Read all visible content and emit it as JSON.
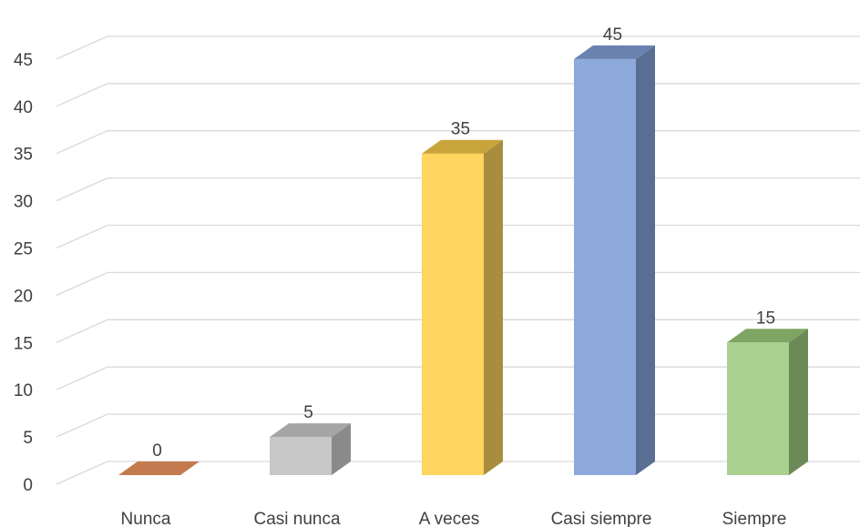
{
  "chart_data": {
    "type": "bar",
    "style": "3d-column",
    "categories": [
      "Nunca",
      "Casi nunca",
      "A veces",
      "Casi siempre",
      "Siempre"
    ],
    "values": [
      0,
      5,
      35,
      45,
      15
    ],
    "data_labels": [
      "0",
      "5",
      "35",
      "45",
      "15"
    ],
    "ylim": [
      0,
      45
    ],
    "yticks": [
      0,
      5,
      10,
      15,
      20,
      25,
      30,
      35,
      40,
      45
    ],
    "grid": true,
    "legend": "none",
    "colors": [
      {
        "front": "#c47a4f",
        "side": "#9a5a36",
        "top": "#c47a4f"
      },
      {
        "front": "#c8c8c8",
        "side": "#8a8a8a",
        "top": "#a5a5a5"
      },
      {
        "front": "#ffd45f",
        "side": "#a88d3e",
        "top": "#c9a43a"
      },
      {
        "front": "#8eaadb",
        "side": "#5a6d92",
        "top": "#6a82b0"
      },
      {
        "front": "#a9d08e",
        "side": "#6c8a58",
        "top": "#7ea563"
      }
    ]
  }
}
